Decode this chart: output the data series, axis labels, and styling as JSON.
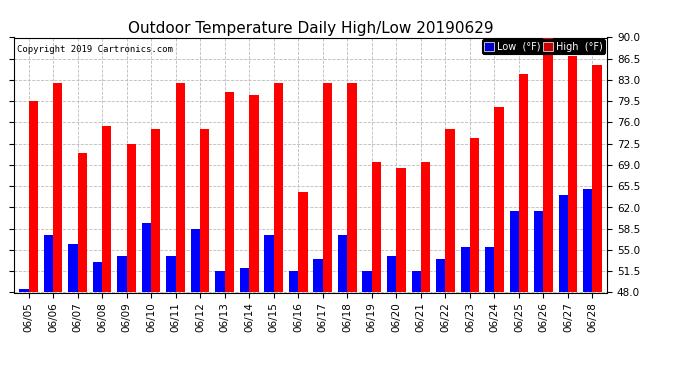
{
  "title": "Outdoor Temperature Daily High/Low 20190629",
  "copyright": "Copyright 2019 Cartronics.com",
  "legend_low": "Low  (°F)",
  "legend_high": "High  (°F)",
  "dates": [
    "06/05",
    "06/06",
    "06/07",
    "06/08",
    "06/09",
    "06/10",
    "06/11",
    "06/12",
    "06/13",
    "06/14",
    "06/15",
    "06/16",
    "06/17",
    "06/18",
    "06/19",
    "06/20",
    "06/21",
    "06/22",
    "06/23",
    "06/24",
    "06/25",
    "06/26",
    "06/27",
    "06/28"
  ],
  "highs": [
    79.5,
    82.5,
    71.0,
    75.5,
    72.5,
    75.0,
    82.5,
    75.0,
    81.0,
    80.5,
    82.5,
    64.5,
    82.5,
    82.5,
    69.5,
    68.5,
    69.5,
    75.0,
    73.5,
    78.5,
    84.0,
    91.0,
    87.0,
    85.5
  ],
  "lows": [
    48.5,
    57.5,
    56.0,
    53.0,
    54.0,
    59.5,
    54.0,
    58.5,
    51.5,
    52.0,
    57.5,
    51.5,
    53.5,
    57.5,
    51.5,
    54.0,
    51.5,
    53.5,
    55.5,
    55.5,
    61.5,
    61.5,
    64.0,
    65.0
  ],
  "ylim": [
    48.0,
    90.0
  ],
  "yticks": [
    48.0,
    51.5,
    55.0,
    58.5,
    62.0,
    65.5,
    69.0,
    72.5,
    76.0,
    79.5,
    83.0,
    86.5,
    90.0
  ],
  "bar_width": 0.38,
  "color_low": "#0000ff",
  "color_high": "#ff0000",
  "background_color": "#ffffff",
  "plot_bg": "#ffffff",
  "grid_color": "#bbbbbb",
  "title_fontsize": 11,
  "tick_fontsize": 7.5,
  "copyright_fontsize": 6.5
}
